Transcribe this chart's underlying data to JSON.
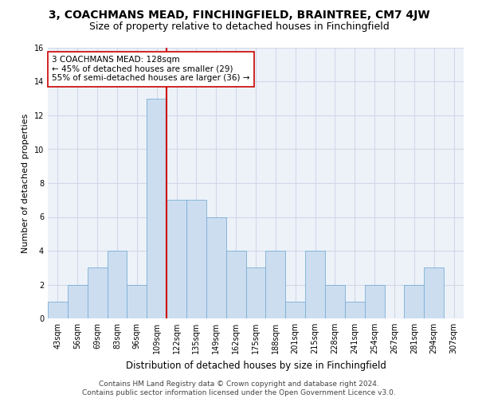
{
  "title1": "3, COACHMANS MEAD, FINCHINGFIELD, BRAINTREE, CM7 4JW",
  "title2": "Size of property relative to detached houses in Finchingfield",
  "xlabel": "Distribution of detached houses by size in Finchingfield",
  "ylabel": "Number of detached properties",
  "categories": [
    "43sqm",
    "56sqm",
    "69sqm",
    "83sqm",
    "96sqm",
    "109sqm",
    "122sqm",
    "135sqm",
    "149sqm",
    "162sqm",
    "175sqm",
    "188sqm",
    "201sqm",
    "215sqm",
    "228sqm",
    "241sqm",
    "254sqm",
    "267sqm",
    "281sqm",
    "294sqm",
    "307sqm"
  ],
  "values": [
    1,
    2,
    3,
    4,
    2,
    13,
    7,
    7,
    6,
    4,
    3,
    4,
    1,
    4,
    2,
    1,
    2,
    0,
    2,
    3,
    0
  ],
  "bar_color": "#ccddf0",
  "bar_edge_color": "#7aafd4",
  "vline_index": 5.5,
  "vline_color": "#cc0000",
  "annotation_line1": "3 COACHMANS MEAD: 128sqm",
  "annotation_line2": "← 45% of detached houses are smaller (29)",
  "annotation_line3": "55% of semi-detached houses are larger (36) →",
  "annotation_box_color": "#ffffff",
  "annotation_box_edge": "#cc0000",
  "ylim": [
    0,
    16
  ],
  "yticks": [
    0,
    2,
    4,
    6,
    8,
    10,
    12,
    14,
    16
  ],
  "grid_color": "#d0d8e8",
  "bg_color": "#edf2f9",
  "footnote": "Contains HM Land Registry data © Crown copyright and database right 2024.\nContains public sector information licensed under the Open Government Licence v3.0.",
  "title1_fontsize": 10,
  "title2_fontsize": 9,
  "xlabel_fontsize": 8.5,
  "ylabel_fontsize": 8,
  "tick_fontsize": 7,
  "annotation_fontsize": 7.5,
  "footnote_fontsize": 6.5
}
